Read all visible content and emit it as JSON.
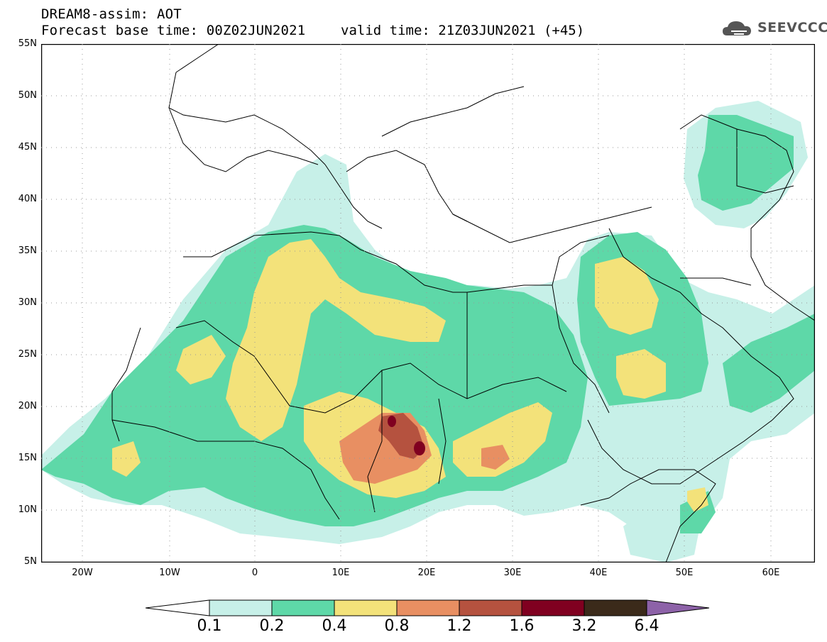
{
  "header": {
    "title": "DREAM8-assim: AOT",
    "base_time": "Forecast base time: 00Z02JUN2021",
    "valid_time": "valid time: 21Z03JUN2021 (+45)",
    "logo_text": "SEEVCCC"
  },
  "axes": {
    "lat_labels": [
      "55N",
      "50N",
      "45N",
      "40N",
      "35N",
      "30N",
      "25N",
      "20N",
      "15N",
      "10N",
      "5N"
    ],
    "lon_labels": [
      "20W",
      "10W",
      "0",
      "10E",
      "20E",
      "30E",
      "40E",
      "50E",
      "60E"
    ]
  },
  "colorbar": {
    "labels": [
      "0.1",
      "0.2",
      "0.4",
      "0.8",
      "1.2",
      "1.6",
      "3.2",
      "6.4"
    ],
    "colors": [
      "#c7f0e8",
      "#5ed8a8",
      "#f3e27a",
      "#e88f62",
      "#b5523f",
      "#800020",
      "#3b2a1a",
      "#8d62a8"
    ]
  }
}
